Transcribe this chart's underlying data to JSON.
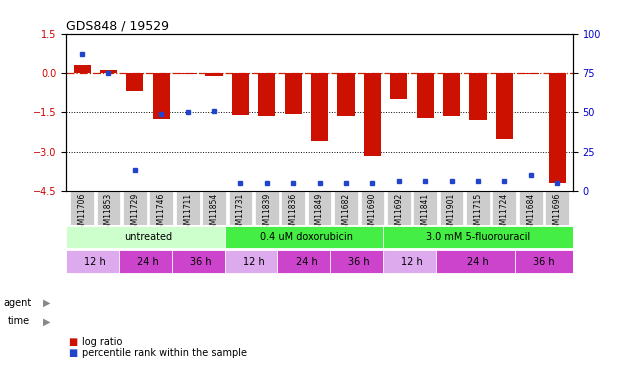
{
  "title": "GDS848 / 19529",
  "samples": [
    "GSM11706",
    "GSM11853",
    "GSM11729",
    "GSM11746",
    "GSM11711",
    "GSM11854",
    "GSM11731",
    "GSM11839",
    "GSM11836",
    "GSM11849",
    "GSM11682",
    "GSM11690",
    "GSM11692",
    "GSM11841",
    "GSM11901",
    "GSM11715",
    "GSM11724",
    "GSM11684",
    "GSM11696"
  ],
  "log_ratio": [
    0.3,
    0.1,
    -0.7,
    -1.75,
    -0.05,
    -0.1,
    -1.6,
    -1.65,
    -1.55,
    -2.6,
    -1.65,
    -3.15,
    -1.0,
    -1.7,
    -1.65,
    -1.8,
    -2.5,
    -0.05,
    -4.2
  ],
  "percentile_rank": [
    87,
    75,
    13,
    49,
    50,
    51,
    5,
    5,
    5,
    5,
    5,
    5,
    6,
    6,
    6,
    6,
    6,
    10,
    5
  ],
  "ylim_left": [
    -4.5,
    1.5
  ],
  "ylim_right": [
    0,
    100
  ],
  "yticks_left": [
    1.5,
    0,
    -1.5,
    -3.0,
    -4.5
  ],
  "yticks_right": [
    100,
    75,
    50,
    25,
    0
  ],
  "hlines_dotted": [
    -1.5,
    -3.0
  ],
  "hline_zero": 0,
  "agents": [
    {
      "label": "untreated",
      "cols": 6,
      "color": "#ccffcc"
    },
    {
      "label": "0.4 uM doxorubicin",
      "cols": 6,
      "color": "#44ee44"
    },
    {
      "label": "3.0 mM 5-fluorouracil",
      "cols": 7,
      "color": "#44ee44"
    }
  ],
  "times": [
    {
      "label": "12 h",
      "cols": 2,
      "color": "#ddaaee"
    },
    {
      "label": "24 h",
      "cols": 2,
      "color": "#cc44cc"
    },
    {
      "label": "36 h",
      "cols": 2,
      "color": "#cc44cc"
    },
    {
      "label": "12 h",
      "cols": 2,
      "color": "#ddaaee"
    },
    {
      "label": "24 h",
      "cols": 2,
      "color": "#cc44cc"
    },
    {
      "label": "36 h",
      "cols": 2,
      "color": "#cc44cc"
    },
    {
      "label": "12 h",
      "cols": 2,
      "color": "#ddaaee"
    },
    {
      "label": "24 h",
      "cols": 3,
      "color": "#cc44cc"
    },
    {
      "label": "36 h",
      "cols": 2,
      "color": "#cc44cc"
    }
  ],
  "bar_color": "#cc1100",
  "dot_color": "#2244cc",
  "zero_line_color": "#cc2200",
  "tick_color_left": "#cc0000",
  "tick_color_right": "#0000cc",
  "bg_color": "#ffffff",
  "sample_label_bg": "#cccccc",
  "label_fontsize": 7,
  "tick_fontsize": 7,
  "title_fontsize": 9,
  "annotation_fontsize": 8
}
